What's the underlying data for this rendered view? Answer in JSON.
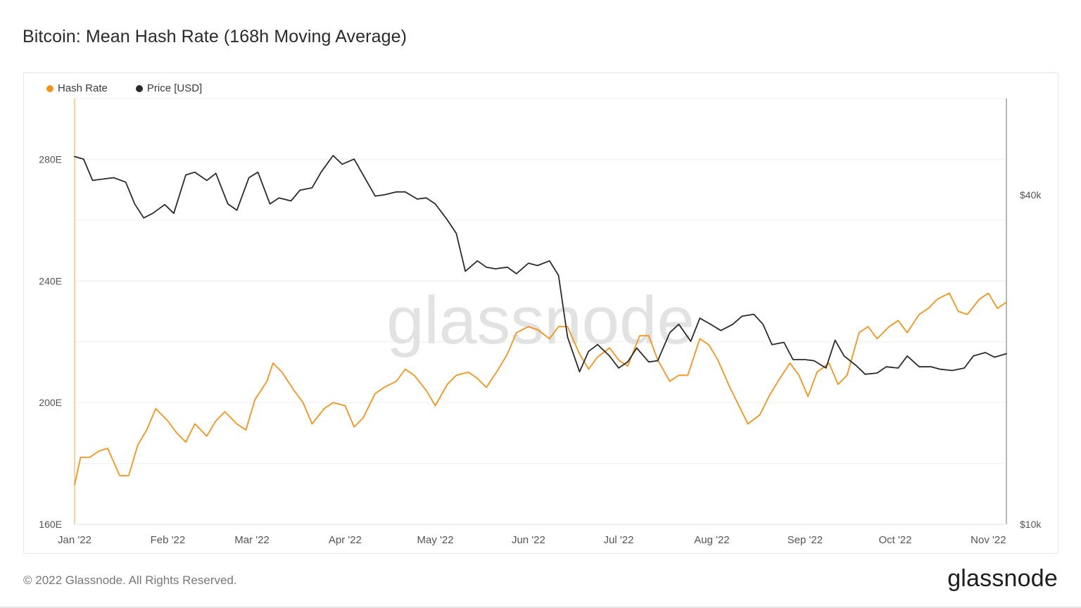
{
  "title": "Bitcoin: Mean Hash Rate (168h Moving Average)",
  "footer": {
    "copyright": "© 2022 Glassnode. All Rights Reserved.",
    "logo": "glassnode"
  },
  "watermark": "glassnode",
  "colors": {
    "hash_rate": "#F7931A",
    "price": "#2B2B2B",
    "grid": "#EFEFEF",
    "axis_text": "#555555"
  },
  "chart_data": {
    "type": "line",
    "title": "Bitcoin: Mean Hash Rate (168h Moving Average)",
    "legend": [
      "Hash Rate",
      "Price [USD]"
    ],
    "legend_placement": "top-left",
    "x_ticks": [
      "Jan '22",
      "Feb '22",
      "Mar '22",
      "Apr '22",
      "May '22",
      "Jun '22",
      "Jul '22",
      "Aug '22",
      "Sep '22",
      "Oct '22",
      "Nov '22"
    ],
    "x_tick_dates": [
      "2022-01-01",
      "2022-02-01",
      "2022-03-01",
      "2022-04-01",
      "2022-05-01",
      "2022-06-01",
      "2022-07-01",
      "2022-08-01",
      "2022-09-01",
      "2022-10-01",
      "2022-11-01"
    ],
    "x_range": [
      "2022-01-01",
      "2022-11-07"
    ],
    "y_left": {
      "label": "",
      "unit": "EH/s",
      "ticks": [
        "160E",
        "200E",
        "240E",
        "280E"
      ],
      "tick_values": [
        160,
        200,
        240,
        280
      ],
      "range": [
        160,
        300
      ]
    },
    "y_right": {
      "label": "",
      "unit": "USD",
      "scale": "log",
      "ticks": [
        "$10k",
        "$40k"
      ],
      "tick_values": [
        10000,
        40000
      ],
      "range": [
        10000,
        60000
      ]
    },
    "grid": true,
    "series": [
      {
        "name": "Hash Rate",
        "axis": "left",
        "color": "#F7931A",
        "points": [
          [
            "2022-01-01",
            173
          ],
          [
            "2022-01-03",
            182
          ],
          [
            "2022-01-06",
            182
          ],
          [
            "2022-01-09",
            184
          ],
          [
            "2022-01-12",
            185
          ],
          [
            "2022-01-16",
            176
          ],
          [
            "2022-01-19",
            176
          ],
          [
            "2022-01-22",
            186
          ],
          [
            "2022-01-25",
            191
          ],
          [
            "2022-01-28",
            198
          ],
          [
            "2022-02-01",
            194
          ],
          [
            "2022-02-04",
            190
          ],
          [
            "2022-02-07",
            187
          ],
          [
            "2022-02-10",
            193
          ],
          [
            "2022-02-14",
            189
          ],
          [
            "2022-02-17",
            194
          ],
          [
            "2022-02-20",
            197
          ],
          [
            "2022-02-24",
            193
          ],
          [
            "2022-02-27",
            191
          ],
          [
            "2022-03-02",
            201
          ],
          [
            "2022-03-06",
            207
          ],
          [
            "2022-03-08",
            213
          ],
          [
            "2022-03-11",
            210
          ],
          [
            "2022-03-15",
            204
          ],
          [
            "2022-03-18",
            200
          ],
          [
            "2022-03-21",
            193
          ],
          [
            "2022-03-25",
            198
          ],
          [
            "2022-03-28",
            200
          ],
          [
            "2022-04-01",
            199
          ],
          [
            "2022-04-04",
            192
          ],
          [
            "2022-04-07",
            195
          ],
          [
            "2022-04-11",
            203
          ],
          [
            "2022-04-14",
            205
          ],
          [
            "2022-04-18",
            207
          ],
          [
            "2022-04-21",
            211
          ],
          [
            "2022-04-24",
            209
          ],
          [
            "2022-04-28",
            204
          ],
          [
            "2022-05-01",
            199
          ],
          [
            "2022-05-05",
            206
          ],
          [
            "2022-05-08",
            209
          ],
          [
            "2022-05-12",
            210
          ],
          [
            "2022-05-15",
            208
          ],
          [
            "2022-05-18",
            205
          ],
          [
            "2022-05-22",
            211
          ],
          [
            "2022-05-25",
            216
          ],
          [
            "2022-05-28",
            223
          ],
          [
            "2022-06-01",
            225
          ],
          [
            "2022-06-04",
            224
          ],
          [
            "2022-06-08",
            221
          ],
          [
            "2022-06-11",
            225
          ],
          [
            "2022-06-14",
            225
          ],
          [
            "2022-06-18",
            216
          ],
          [
            "2022-06-21",
            211
          ],
          [
            "2022-06-24",
            215
          ],
          [
            "2022-06-28",
            218
          ],
          [
            "2022-07-01",
            214
          ],
          [
            "2022-07-04",
            212
          ],
          [
            "2022-07-08",
            222
          ],
          [
            "2022-07-11",
            222
          ],
          [
            "2022-07-14",
            214
          ],
          [
            "2022-07-18",
            207
          ],
          [
            "2022-07-21",
            209
          ],
          [
            "2022-07-24",
            209
          ],
          [
            "2022-07-28",
            221
          ],
          [
            "2022-07-31",
            219
          ],
          [
            "2022-08-03",
            214
          ],
          [
            "2022-08-07",
            205
          ],
          [
            "2022-08-10",
            199
          ],
          [
            "2022-08-13",
            193
          ],
          [
            "2022-08-17",
            196
          ],
          [
            "2022-08-20",
            202
          ],
          [
            "2022-08-23",
            207
          ],
          [
            "2022-08-27",
            213
          ],
          [
            "2022-08-30",
            209
          ],
          [
            "2022-09-02",
            202
          ],
          [
            "2022-09-05",
            210
          ],
          [
            "2022-09-09",
            213
          ],
          [
            "2022-09-12",
            206
          ],
          [
            "2022-09-15",
            209
          ],
          [
            "2022-09-19",
            223
          ],
          [
            "2022-09-22",
            225
          ],
          [
            "2022-09-25",
            221
          ],
          [
            "2022-09-29",
            225
          ],
          [
            "2022-10-02",
            227
          ],
          [
            "2022-10-05",
            223
          ],
          [
            "2022-10-09",
            229
          ],
          [
            "2022-10-12",
            231
          ],
          [
            "2022-10-15",
            234
          ],
          [
            "2022-10-19",
            236
          ],
          [
            "2022-10-22",
            230
          ],
          [
            "2022-10-25",
            229
          ],
          [
            "2022-10-29",
            234
          ],
          [
            "2022-11-01",
            236
          ],
          [
            "2022-11-04",
            231
          ],
          [
            "2022-11-07",
            233
          ]
        ]
      },
      {
        "name": "Price [USD]",
        "axis": "right",
        "color": "#2B2B2B",
        "points": [
          [
            "2022-01-01",
            47000
          ],
          [
            "2022-01-04",
            46500
          ],
          [
            "2022-01-07",
            42500
          ],
          [
            "2022-01-11",
            42800
          ],
          [
            "2022-01-14",
            43000
          ],
          [
            "2022-01-18",
            42200
          ],
          [
            "2022-01-21",
            38500
          ],
          [
            "2022-01-24",
            36300
          ],
          [
            "2022-01-27",
            37000
          ],
          [
            "2022-01-31",
            38400
          ],
          [
            "2022-02-03",
            37000
          ],
          [
            "2022-02-07",
            43500
          ],
          [
            "2022-02-10",
            44000
          ],
          [
            "2022-02-14",
            42500
          ],
          [
            "2022-02-17",
            43800
          ],
          [
            "2022-02-21",
            38500
          ],
          [
            "2022-02-24",
            37500
          ],
          [
            "2022-02-28",
            43000
          ],
          [
            "2022-03-03",
            44000
          ],
          [
            "2022-03-07",
            38500
          ],
          [
            "2022-03-10",
            39500
          ],
          [
            "2022-03-14",
            39000
          ],
          [
            "2022-03-17",
            40800
          ],
          [
            "2022-03-21",
            41200
          ],
          [
            "2022-03-24",
            44000
          ],
          [
            "2022-03-28",
            47200
          ],
          [
            "2022-03-31",
            45500
          ],
          [
            "2022-04-04",
            46500
          ],
          [
            "2022-04-07",
            43500
          ],
          [
            "2022-04-11",
            39800
          ],
          [
            "2022-04-14",
            40000
          ],
          [
            "2022-04-18",
            40500
          ],
          [
            "2022-04-21",
            40500
          ],
          [
            "2022-04-25",
            39300
          ],
          [
            "2022-04-28",
            39500
          ],
          [
            "2022-05-01",
            38500
          ],
          [
            "2022-05-05",
            36000
          ],
          [
            "2022-05-08",
            34000
          ],
          [
            "2022-05-11",
            29000
          ],
          [
            "2022-05-15",
            30300
          ],
          [
            "2022-05-18",
            29500
          ],
          [
            "2022-05-21",
            29300
          ],
          [
            "2022-05-25",
            29500
          ],
          [
            "2022-05-28",
            28700
          ],
          [
            "2022-06-01",
            30000
          ],
          [
            "2022-06-04",
            29700
          ],
          [
            "2022-06-08",
            30300
          ],
          [
            "2022-06-11",
            28500
          ],
          [
            "2022-06-14",
            22000
          ],
          [
            "2022-06-18",
            19000
          ],
          [
            "2022-06-21",
            20700
          ],
          [
            "2022-06-24",
            21300
          ],
          [
            "2022-06-28",
            20300
          ],
          [
            "2022-07-01",
            19300
          ],
          [
            "2022-07-04",
            19800
          ],
          [
            "2022-07-07",
            21000
          ],
          [
            "2022-07-11",
            19800
          ],
          [
            "2022-07-14",
            19900
          ],
          [
            "2022-07-18",
            22400
          ],
          [
            "2022-07-21",
            23200
          ],
          [
            "2022-07-25",
            21600
          ],
          [
            "2022-07-28",
            23800
          ],
          [
            "2022-07-31",
            23300
          ],
          [
            "2022-08-04",
            22600
          ],
          [
            "2022-08-08",
            23200
          ],
          [
            "2022-08-11",
            24000
          ],
          [
            "2022-08-15",
            24200
          ],
          [
            "2022-08-18",
            23200
          ],
          [
            "2022-08-21",
            21300
          ],
          [
            "2022-08-25",
            21500
          ],
          [
            "2022-08-28",
            20000
          ],
          [
            "2022-09-01",
            20000
          ],
          [
            "2022-09-04",
            19900
          ],
          [
            "2022-09-08",
            19300
          ],
          [
            "2022-09-11",
            21700
          ],
          [
            "2022-09-14",
            20300
          ],
          [
            "2022-09-18",
            19500
          ],
          [
            "2022-09-21",
            18800
          ],
          [
            "2022-09-25",
            18900
          ],
          [
            "2022-09-28",
            19400
          ],
          [
            "2022-10-02",
            19300
          ],
          [
            "2022-10-05",
            20300
          ],
          [
            "2022-10-09",
            19400
          ],
          [
            "2022-10-13",
            19400
          ],
          [
            "2022-10-16",
            19200
          ],
          [
            "2022-10-20",
            19100
          ],
          [
            "2022-10-24",
            19300
          ],
          [
            "2022-10-27",
            20300
          ],
          [
            "2022-10-31",
            20600
          ],
          [
            "2022-11-03",
            20200
          ],
          [
            "2022-11-07",
            20500
          ]
        ]
      }
    ]
  }
}
